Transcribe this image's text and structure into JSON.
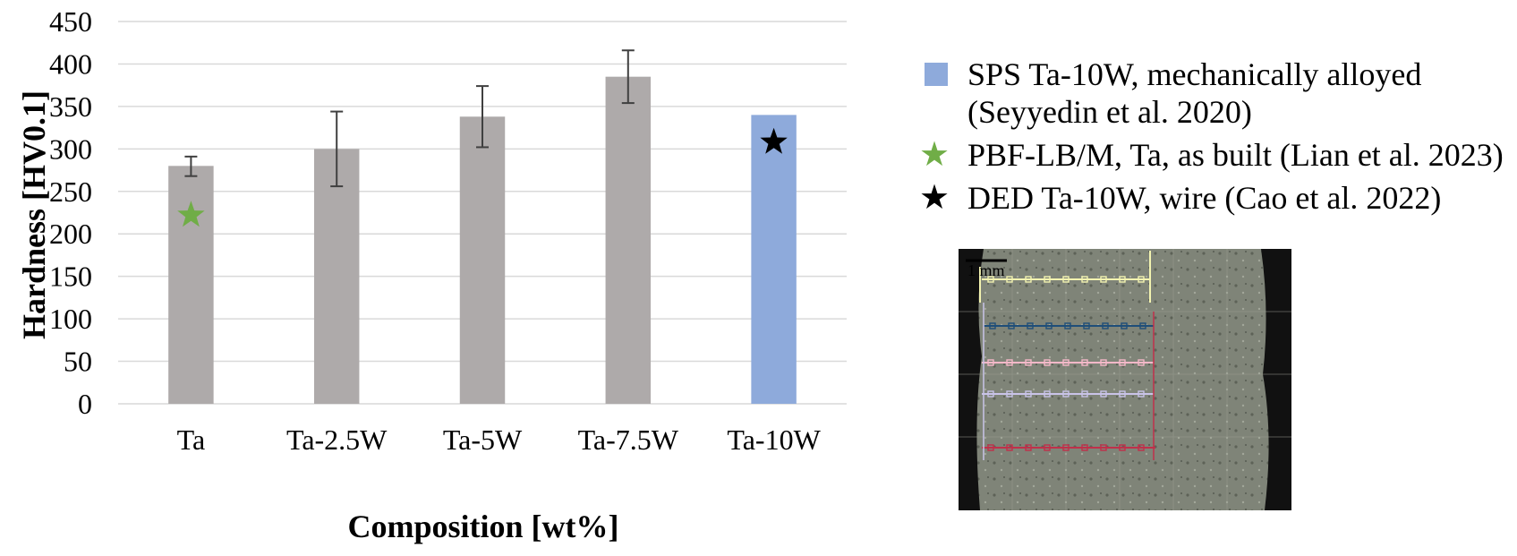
{
  "chart_data": {
    "type": "bar",
    "categories": [
      "Ta",
      "Ta-2.5W",
      "Ta-5W",
      "Ta-7.5W",
      "Ta-10W"
    ],
    "values": [
      280,
      300,
      338,
      385,
      340
    ],
    "error_low": [
      268,
      256,
      302,
      354,
      null
    ],
    "error_high": [
      291,
      344,
      374,
      416,
      null
    ],
    "bar_colors": [
      "#aeaaaa",
      "#aeaaaa",
      "#aeaaaa",
      "#aeaaaa",
      "#8eaadb"
    ],
    "xlabel": "Composition [wt%]",
    "ylabel": "Hardness [HV0.1]",
    "ylim": [
      0,
      450
    ],
    "yticks": [
      0,
      50,
      100,
      150,
      200,
      250,
      300,
      350,
      400,
      450
    ],
    "grid": true,
    "markers": [
      {
        "category": "Ta",
        "value": 222,
        "color": "#70ad47",
        "shape": "star"
      },
      {
        "category": "Ta-10W",
        "value": 308,
        "color": "#000000",
        "shape": "star"
      }
    ],
    "legend_position": "right",
    "legend": [
      {
        "symbol": "square",
        "color": "#8eaadb",
        "line1": "SPS Ta-10W, mechanically alloyed",
        "line2": "(Seyyedin et al. 2020)"
      },
      {
        "symbol": "star",
        "color": "#70ad47",
        "line1": "PBF-LB/M, Ta, as built (Lian et al. 2023)",
        "line2": ""
      },
      {
        "symbol": "star",
        "color": "#000000",
        "line1": "DED Ta-10W, wire (Cao et al. 2022)",
        "line2": ""
      }
    ]
  },
  "inset": {
    "scale_label": "1 mm",
    "background_color": "#7f8478",
    "line_colors": [
      "#f3f3b0",
      "#1f4e79",
      "#f4b8c8",
      "#c9c3e8",
      "#c0304a"
    ]
  }
}
